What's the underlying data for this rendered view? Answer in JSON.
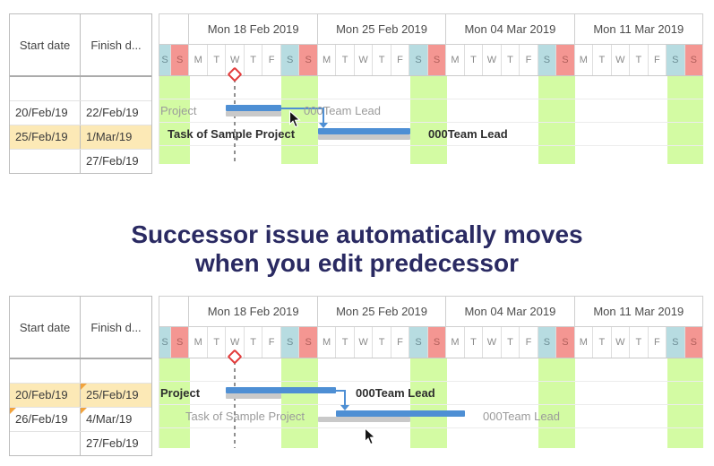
{
  "caption": {
    "line1": "Successor issue automatically moves",
    "line2": "when you edit predecessor"
  },
  "columns": {
    "start": "Start date",
    "finish": "Finish d..."
  },
  "timeline": {
    "weeks": [
      "Mon 18 Feb 2019",
      "Mon 25 Feb 2019",
      "Mon 04 Mar 2019",
      "Mon 11 Mar 2019"
    ],
    "day_cells": [
      {
        "l": "S",
        "t": "sat"
      },
      {
        "l": "S",
        "t": "sun"
      },
      {
        "l": "M",
        "t": "wd"
      },
      {
        "l": "T",
        "t": "wd"
      },
      {
        "l": "W",
        "t": "wd"
      },
      {
        "l": "T",
        "t": "wd"
      },
      {
        "l": "F",
        "t": "wd"
      },
      {
        "l": "S",
        "t": "sat"
      },
      {
        "l": "S",
        "t": "sun"
      },
      {
        "l": "M",
        "t": "wd"
      },
      {
        "l": "T",
        "t": "wd"
      },
      {
        "l": "W",
        "t": "wd"
      },
      {
        "l": "T",
        "t": "wd"
      },
      {
        "l": "F",
        "t": "wd"
      },
      {
        "l": "S",
        "t": "sat"
      },
      {
        "l": "S",
        "t": "sun"
      },
      {
        "l": "M",
        "t": "wd"
      },
      {
        "l": "T",
        "t": "wd"
      },
      {
        "l": "W",
        "t": "wd"
      },
      {
        "l": "T",
        "t": "wd"
      },
      {
        "l": "F",
        "t": "wd"
      },
      {
        "l": "S",
        "t": "sat"
      },
      {
        "l": "S",
        "t": "sun"
      },
      {
        "l": "M",
        "t": "wd"
      },
      {
        "l": "T",
        "t": "wd"
      },
      {
        "l": "W",
        "t": "wd"
      },
      {
        "l": "T",
        "t": "wd"
      },
      {
        "l": "F",
        "t": "wd"
      },
      {
        "l": "S",
        "t": "sat"
      },
      {
        "l": "S",
        "t": "sun"
      }
    ]
  },
  "colors": {
    "bar_blue": "#4e8fd4",
    "bar_baseline_gray": "#c9c9c9",
    "weekend_band_green": "#d3fba3",
    "saturday_header": "#b7dce1",
    "sunday_header": "#f49692",
    "row_highlight": "#fce9b6",
    "changed_flag_orange": "#f2a33c",
    "today_marker_red": "#e23b3b",
    "caption_navy": "#2a2a62"
  },
  "panels": [
    {
      "id": "before",
      "table_rows": [
        {
          "start": "",
          "finish": ""
        },
        {
          "start": "20/Feb/19",
          "finish": "22/Feb/19"
        },
        {
          "start": "25/Feb/19",
          "finish": "1/Mar/19",
          "highlight": true
        },
        {
          "start": "",
          "finish": "27/Feb/19"
        }
      ],
      "gantt_rows": [
        {},
        {
          "label": "Project",
          "assignee": "000Team Lead",
          "muted": true,
          "bar": "Wed 20 Feb - Fri 22 Feb",
          "baseline": "Wed 20 Feb - Fri 22 Feb"
        },
        {
          "label": "Task of Sample Project",
          "assignee": "000Team Lead",
          "muted": false,
          "bar": "Mon 25 Feb - Fri 01 Mar",
          "baseline": "Mon 25 Feb - Fri 01 Mar"
        },
        {}
      ]
    },
    {
      "id": "after",
      "table_rows": [
        {
          "start": "",
          "finish": ""
        },
        {
          "start": "20/Feb/19",
          "finish": "25/Feb/19",
          "highlight": true,
          "changed_finish": true
        },
        {
          "start": "26/Feb/19",
          "finish": "4/Mar/19",
          "changed_start": true,
          "changed_finish": true
        },
        {
          "start": "",
          "finish": "27/Feb/19"
        }
      ],
      "gantt_rows": [
        {},
        {
          "label": "Project",
          "assignee": "000Team Lead",
          "muted": false,
          "bar": "Wed 20 Feb - Mon 25 Feb",
          "baseline": "Wed 20 Feb - Fri 22 Feb"
        },
        {
          "label": "Task of Sample Project",
          "assignee": "000Team Lead",
          "muted": true,
          "bar": "Tue 26 Feb - Mon 04 Mar",
          "baseline": "Mon 25 Feb - Fri 01 Mar"
        },
        {}
      ]
    }
  ]
}
